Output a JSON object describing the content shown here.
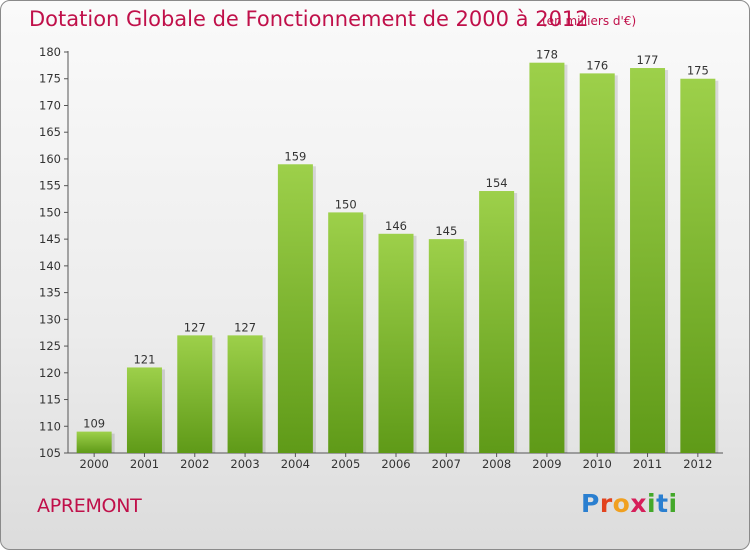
{
  "header": {
    "title": "Dotation Globale de Fonctionnement de 2000 à 2012",
    "unit": "(en milliers d'€)"
  },
  "footer": {
    "commune": "APREMONT",
    "brand": [
      "P",
      "r",
      "o",
      "x",
      "i",
      "t",
      "i"
    ],
    "brand_colors": [
      "#2a7fd0",
      "#e2431e",
      "#f0a020",
      "#d61f5a",
      "#43a82a",
      "#2a7fd0",
      "#43a82a"
    ]
  },
  "chart_data": {
    "type": "bar",
    "categories": [
      "2000",
      "2001",
      "2002",
      "2003",
      "2004",
      "2005",
      "2006",
      "2007",
      "2008",
      "2009",
      "2010",
      "2011",
      "2012"
    ],
    "values": [
      109,
      121,
      127,
      127,
      159,
      150,
      146,
      145,
      154,
      178,
      176,
      177,
      175
    ],
    "data_labels": [
      "109",
      "121",
      "127",
      "127",
      "159",
      "150",
      "146",
      "145",
      "154",
      "178",
      "176",
      "177",
      "175"
    ],
    "title": "Dotation Globale de Fonctionnement de 2000 à 2012",
    "subtitle": "(en milliers d'€)",
    "xlabel": "",
    "ylabel": "",
    "ylim": [
      105,
      180
    ],
    "yticks": [
      105,
      110,
      115,
      120,
      125,
      130,
      135,
      140,
      145,
      150,
      155,
      160,
      165,
      170,
      175,
      180
    ],
    "grid": false,
    "bar_color": "#8cc63f"
  }
}
